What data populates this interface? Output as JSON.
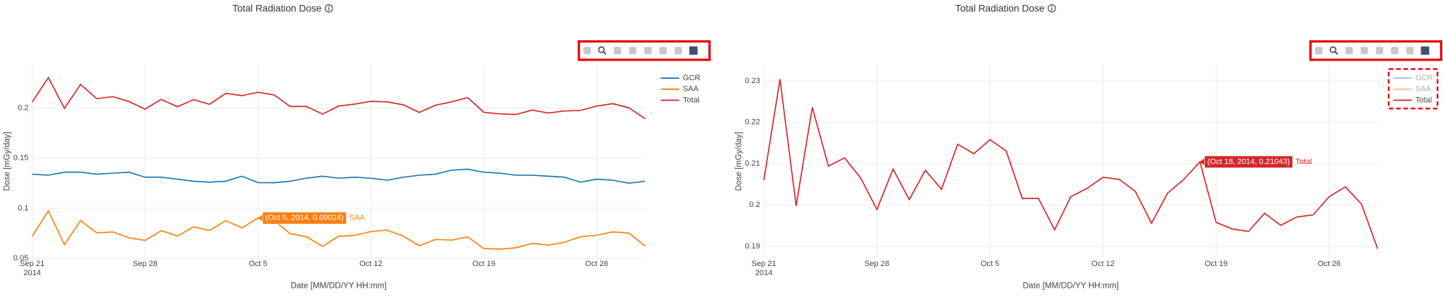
{
  "chart_data": [
    {
      "type": "line",
      "title": "Total Radiation Dose",
      "xlabel": "Date [MM/DD/YY HH:mm]",
      "ylabel": "Dose [mGy/day]",
      "x": [
        "2014-09-21",
        "2014-09-22",
        "2014-09-23",
        "2014-09-24",
        "2014-09-25",
        "2014-09-26",
        "2014-09-27",
        "2014-09-28",
        "2014-09-29",
        "2014-09-30",
        "2014-10-01",
        "2014-10-02",
        "2014-10-03",
        "2014-10-04",
        "2014-10-05",
        "2014-10-06",
        "2014-10-07",
        "2014-10-08",
        "2014-10-09",
        "2014-10-10",
        "2014-10-11",
        "2014-10-12",
        "2014-10-13",
        "2014-10-14",
        "2014-10-15",
        "2014-10-16",
        "2014-10-17",
        "2014-10-18",
        "2014-10-19",
        "2014-10-20",
        "2014-10-21",
        "2014-10-22",
        "2014-10-23",
        "2014-10-24",
        "2014-10-25",
        "2014-10-26",
        "2014-10-27",
        "2014-10-28",
        "2014-10-29"
      ],
      "series": [
        {
          "name": "GCR",
          "color": "#1f77b4",
          "values": [
            0.134,
            0.133,
            0.136,
            0.136,
            0.134,
            0.135,
            0.136,
            0.131,
            0.131,
            0.129,
            0.127,
            0.126,
            0.127,
            0.132,
            0.1256,
            0.1255,
            0.127,
            0.13,
            0.132,
            0.13,
            0.131,
            0.13,
            0.128,
            0.131,
            0.133,
            0.134,
            0.138,
            0.139,
            0.136,
            0.135,
            0.133,
            0.133,
            0.132,
            0.131,
            0.126,
            0.129,
            0.128,
            0.125,
            0.127
          ]
        },
        {
          "name": "SAA",
          "color": "#ff7f0e",
          "values": [
            0.072,
            0.0974,
            0.0638,
            0.0876,
            0.0754,
            0.0764,
            0.0705,
            0.0679,
            0.0777,
            0.0723,
            0.0814,
            0.0778,
            0.0877,
            0.0804,
            0.09024,
            0.0876,
            0.0746,
            0.0716,
            0.062,
            0.072,
            0.073,
            0.0767,
            0.0782,
            0.0723,
            0.0626,
            0.0689,
            0.0682,
            0.0714,
            0.0598,
            0.0592,
            0.0606,
            0.065,
            0.0631,
            0.0661,
            0.0716,
            0.073,
            0.0764,
            0.0752,
            0.0624
          ]
        },
        {
          "name": "Total",
          "color": "#d62728",
          "values": [
            0.206,
            0.2304,
            0.1998,
            0.2236,
            0.2094,
            0.2114,
            0.2065,
            0.1989,
            0.2087,
            0.2013,
            0.2084,
            0.2038,
            0.2147,
            0.2124,
            0.2158,
            0.2131,
            0.2016,
            0.2016,
            0.194,
            0.202,
            0.204,
            0.2067,
            0.2062,
            0.2033,
            0.1956,
            0.2029,
            0.2062,
            0.21043,
            0.1958,
            0.1942,
            0.1936,
            0.198,
            0.1951,
            0.1971,
            0.1976,
            0.202,
            0.2044,
            0.2002,
            0.1894
          ]
        }
      ],
      "xlim": [
        "2014-09-21",
        "2014-10-29"
      ],
      "xticks": [
        {
          "value": "2014-09-21",
          "label": "Sep 21\n2014"
        },
        {
          "value": "2014-09-28",
          "label": "Sep 28"
        },
        {
          "value": "2014-10-05",
          "label": "Oct 5"
        },
        {
          "value": "2014-10-12",
          "label": "Oct 12"
        },
        {
          "value": "2014-10-19",
          "label": "Oct 19"
        },
        {
          "value": "2014-10-26",
          "label": "Oct 26"
        }
      ],
      "ylim": [
        0.05,
        0.2436
      ],
      "yticks": [
        0.05,
        0.1,
        0.15,
        0.2
      ],
      "grid": true,
      "legend": "top-right",
      "hover": {
        "series": 1,
        "index": 14,
        "label": "(Oct 5, 2014, 0.09024)"
      }
    },
    {
      "type": "line",
      "title": "Total Radiation Dose",
      "xlabel": "Date [MM/DD/YY HH:mm]",
      "ylabel": "Dose [mGy/day]",
      "x": [
        "2014-09-21",
        "2014-09-22",
        "2014-09-23",
        "2014-09-24",
        "2014-09-25",
        "2014-09-26",
        "2014-09-27",
        "2014-09-28",
        "2014-09-29",
        "2014-09-30",
        "2014-10-01",
        "2014-10-02",
        "2014-10-03",
        "2014-10-04",
        "2014-10-05",
        "2014-10-06",
        "2014-10-07",
        "2014-10-08",
        "2014-10-09",
        "2014-10-10",
        "2014-10-11",
        "2014-10-12",
        "2014-10-13",
        "2014-10-14",
        "2014-10-15",
        "2014-10-16",
        "2014-10-17",
        "2014-10-18",
        "2014-10-19",
        "2014-10-20",
        "2014-10-21",
        "2014-10-22",
        "2014-10-23",
        "2014-10-24",
        "2014-10-25",
        "2014-10-26",
        "2014-10-27",
        "2014-10-28",
        "2014-10-29"
      ],
      "series": [
        {
          "name": "GCR",
          "color": "#1f77b4",
          "visible": "legendonly"
        },
        {
          "name": "SAA",
          "color": "#ff7f0e",
          "visible": "legendonly"
        },
        {
          "name": "Total",
          "color": "#d62728",
          "values": [
            0.206,
            0.2304,
            0.1998,
            0.2236,
            0.2094,
            0.2114,
            0.2065,
            0.1989,
            0.2087,
            0.2013,
            0.2084,
            0.2038,
            0.2147,
            0.2124,
            0.2158,
            0.2131,
            0.2016,
            0.2016,
            0.194,
            0.202,
            0.204,
            0.2067,
            0.2062,
            0.2033,
            0.1956,
            0.2029,
            0.2062,
            0.21043,
            0.1958,
            0.1942,
            0.1936,
            0.198,
            0.1951,
            0.1971,
            0.1976,
            0.202,
            0.2044,
            0.2002,
            0.1894
          ]
        }
      ],
      "xlim": [
        "2014-09-21",
        "2014-10-29"
      ],
      "xticks": [
        {
          "value": "2014-09-21",
          "label": "Sep 21\n2014"
        },
        {
          "value": "2014-09-28",
          "label": "Sep 28"
        },
        {
          "value": "2014-10-05",
          "label": "Oct 5"
        },
        {
          "value": "2014-10-12",
          "label": "Oct 12"
        },
        {
          "value": "2014-10-19",
          "label": "Oct 19"
        },
        {
          "value": "2014-10-26",
          "label": "Oct 26"
        }
      ],
      "ylim": [
        0.1871,
        0.234
      ],
      "yticks": [
        0.19,
        0.2,
        0.21,
        0.22,
        0.23
      ],
      "grid": true,
      "legend": "top-right",
      "hover": {
        "series": 2,
        "index": 27,
        "label": "(Oct 18, 2014, 0.21043)"
      }
    }
  ]
}
